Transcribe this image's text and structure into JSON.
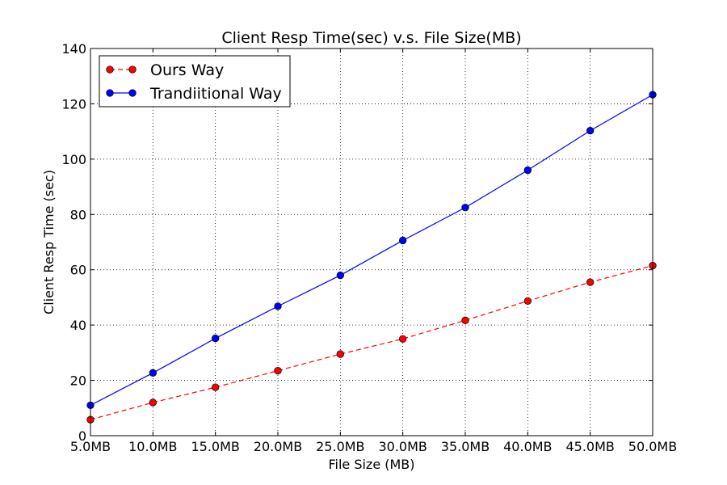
{
  "chart_data": {
    "type": "line",
    "title": "Client Resp Time(sec) v.s. File Size(MB)",
    "xlabel": "File Size (MB)",
    "ylabel": "Client Resp Time (sec)",
    "categories": [
      "5.0MB",
      "10.0MB",
      "15.0MB",
      "20.0MB",
      "25.0MB",
      "30.0MB",
      "35.0MB",
      "40.0MB",
      "45.0MB",
      "50.0MB"
    ],
    "x": [
      5,
      10,
      15,
      20,
      25,
      30,
      35,
      40,
      45,
      50
    ],
    "xlim": [
      5,
      50
    ],
    "ylim": [
      0,
      140
    ],
    "yticks": [
      0,
      20,
      40,
      60,
      80,
      100,
      120,
      140
    ],
    "grid": true,
    "legend_position": "top-left",
    "series": [
      {
        "name": "Ours Way",
        "values": [
          5.8,
          12.0,
          17.5,
          23.5,
          29.5,
          35.0,
          41.7,
          48.7,
          55.5,
          61.5
        ],
        "color": "#ff0000",
        "line_style": "dashed",
        "marker": "circle"
      },
      {
        "name": "Trandiitional Way",
        "values": [
          11.0,
          22.7,
          35.2,
          46.8,
          58.0,
          70.6,
          82.5,
          96.0,
          110.3,
          123.3
        ],
        "color": "#0000ff",
        "line_style": "solid",
        "marker": "circle"
      }
    ]
  }
}
